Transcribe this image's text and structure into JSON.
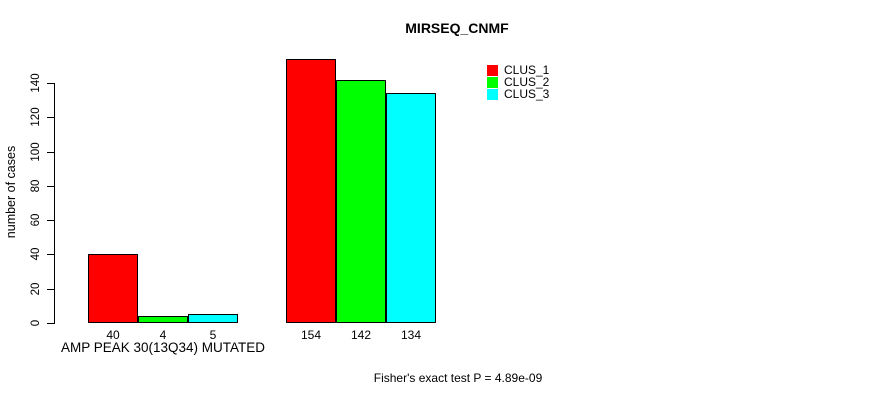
{
  "chart_data": {
    "type": "bar",
    "title": "MIRSEQ_CNMF",
    "ylabel": "number of cases",
    "xlabel": "AMP PEAK 30(13Q34) MUTATED",
    "footnote": "Fisher's exact test P = 4.89e-09",
    "categories": [
      "AMP PEAK 30(13Q34) MUTATED",
      ""
    ],
    "series": [
      {
        "name": "CLUS_1",
        "color": "#ff0000",
        "values": [
          40,
          154
        ]
      },
      {
        "name": "CLUS_2",
        "color": "#00ff00",
        "values": [
          4,
          142
        ]
      },
      {
        "name": "CLUS_3",
        "color": "#00ffff",
        "values": [
          5,
          134
        ]
      }
    ],
    "yticks": [
      0,
      20,
      40,
      60,
      80,
      100,
      120,
      140
    ],
    "ylim": [
      0,
      140
    ],
    "bar_value_labels": true,
    "legend_position": "top-right",
    "grid": false,
    "colors": {
      "background": "#ffffff",
      "axis": "#000000",
      "text": "#000000",
      "bar_outline": "#000000"
    }
  }
}
